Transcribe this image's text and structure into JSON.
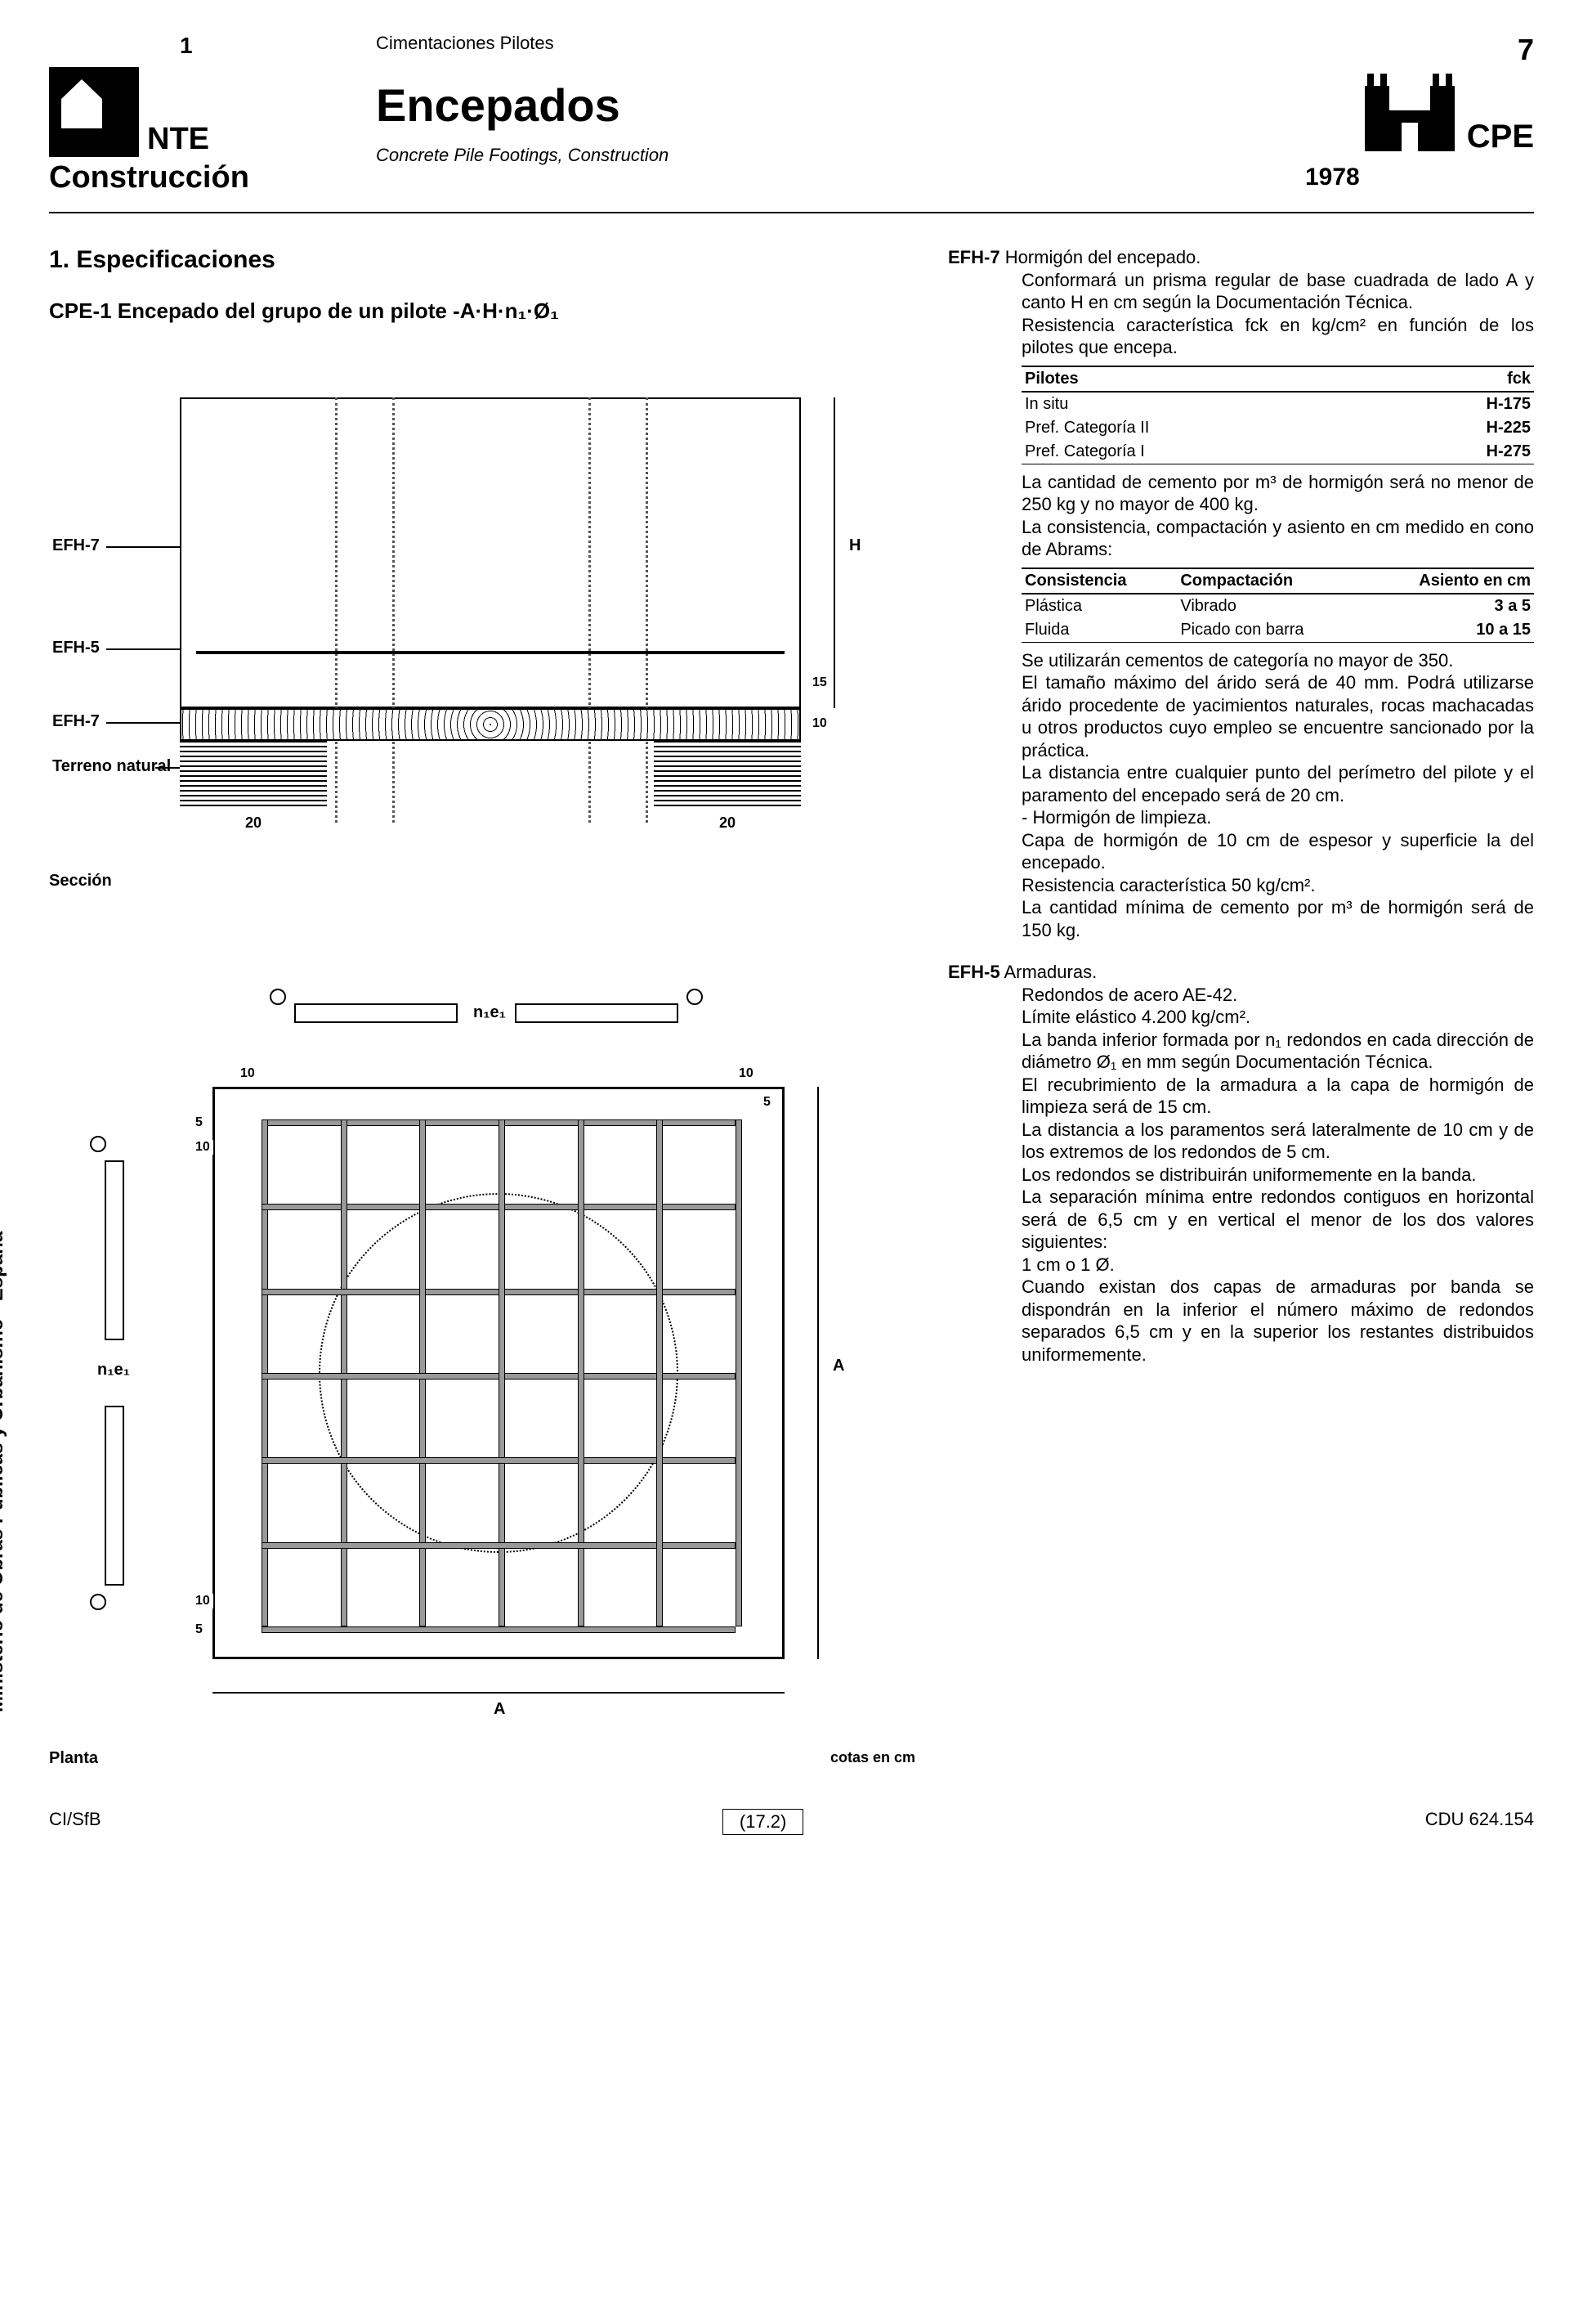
{
  "header": {
    "page_left": "1",
    "nte": "NTE",
    "construccion": "Construcción",
    "subtitle_top": "Cimentaciones Pilotes",
    "main_title": "Encepados",
    "subtitle_en": "Concrete Pile Footings, Construction",
    "page_right": "7",
    "cpe": "CPE",
    "year": "1978"
  },
  "section1": {
    "title": "1. Especificaciones",
    "spec_title": "CPE-1 Encepado del grupo de un pilote -A·H·n₁·Ø₁"
  },
  "diagram_section": {
    "labels": {
      "efh7_top": "EFH-7",
      "efh5": "EFH-5",
      "efh7_bot": "EFH-7",
      "terreno": "Terreno natural",
      "H": "H",
      "d15": "15",
      "d10": "10",
      "d20l": "20",
      "d20r": "20"
    },
    "caption": "Sección"
  },
  "diagram_plan": {
    "labels": {
      "n1e1_top": "n₁e₁",
      "n1e1_left": "n₁e₁",
      "d10": "10",
      "d5": "5",
      "A_right": "A",
      "A_bottom": "A"
    },
    "caption_left": "Planta",
    "caption_right": "cotas en cm"
  },
  "efh7": {
    "code": "EFH-7",
    "title": "Hormigón del encepado.",
    "p1": "Conformará un prisma regular de base cuadrada de lado A y canto H en cm según la Documentación Técnica.",
    "p2": "Resistencia característica fck en kg/cm² en función de los pilotes que encepa.",
    "table1": {
      "h1": "Pilotes",
      "h2": "fck",
      "rows": [
        [
          "In situ",
          "H-175"
        ],
        [
          "Pref. Categoría II",
          "H-225"
        ],
        [
          "Pref. Categoría I",
          "H-275"
        ]
      ]
    },
    "p3": "La cantidad de cemento por m³ de hormigón será no menor de 250 kg y no mayor de 400 kg.",
    "p4": "La consistencia, compactación y asiento en cm medido en cono de Abrams:",
    "table2": {
      "h1": "Consistencia",
      "h2": "Compactación",
      "h3": "Asiento en cm",
      "rows": [
        [
          "Plástica",
          "Vibrado",
          "3 a 5"
        ],
        [
          "Fluida",
          "Picado con barra",
          "10 a 15"
        ]
      ]
    },
    "p5": "Se utilizarán cementos de categoría no mayor de 350.",
    "p6": "El tamaño máximo del árido será de 40 mm. Podrá utilizarse árido procedente de yacimientos naturales, rocas machacadas u otros productos cuyo empleo se encuentre sancionado por la práctica.",
    "p7": "La distancia entre cualquier punto del perímetro del pilote y el paramento del encepado será de 20 cm.",
    "p8": "- Hormigón de limpieza.",
    "p9": "Capa de hormigón de 10 cm de espesor y superficie la del encepado.",
    "p10": "Resistencia característica 50 kg/cm².",
    "p11": "La cantidad mínima de cemento por m³ de hormigón será de 150 kg."
  },
  "efh5": {
    "code": "EFH-5",
    "title": "Armaduras.",
    "p1": "Redondos de acero AE-42.",
    "p2": "Límite elástico 4.200 kg/cm².",
    "p3": "La banda inferior formada por n₁ redondos en cada dirección de diámetro Ø₁ en mm según Documentación Técnica.",
    "p4": "El recubrimiento de la armadura a la capa de hormigón de limpieza será de 15 cm.",
    "p5": "La distancia a los paramentos será lateralmente de 10 cm y de los extremos de los redondos de 5 cm.",
    "p6": "Los redondos se distribuirán uniformemente en la banda.",
    "p7": "La separación mínima entre redondos contiguos en horizontal será de 6,5 cm y en vertical el menor de los dos valores siguientes:",
    "p8": "1 cm o 1 Ø.",
    "p9": "Cuando existan dos capas de armaduras por banda se dispondrán en la inferior el número máximo de redondos separados 6,5 cm y en la superior los restantes distribuidos uniformemente."
  },
  "side_text": "Ministerio de Obras Públicas y Urbanismo - España",
  "footer": {
    "left": "CI/SfB",
    "mid": "(17.2)",
    "right": "CDU 624.154"
  },
  "colors": {
    "text": "#000000",
    "bg": "#ffffff",
    "grid_bar": "#999999",
    "dotted": "#555555"
  }
}
